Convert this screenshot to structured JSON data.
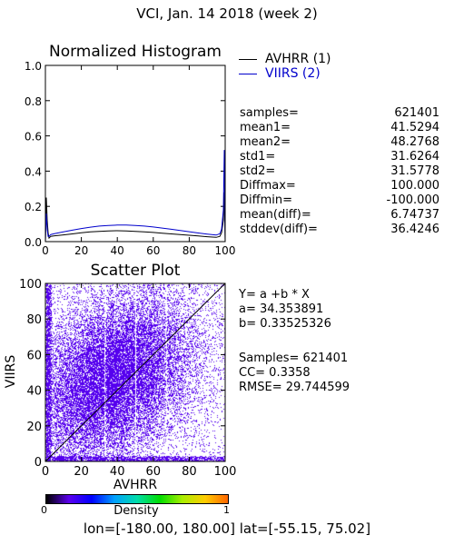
{
  "header": {
    "title": "VCI,  Jan. 14 2018 (week 2)"
  },
  "colors": {
    "avhrr": "#000000",
    "viirs": "#0000cc",
    "scatter": "#5500ee",
    "frame": "#000000"
  },
  "histogram_stats": [
    {
      "label": "samples=",
      "value": "621401"
    },
    {
      "label": "mean1=",
      "value": "41.5294"
    },
    {
      "label": "mean2=",
      "value": "48.2768"
    },
    {
      "label": "std1=",
      "value": "31.6264"
    },
    {
      "label": "std2=",
      "value": "31.5778"
    },
    {
      "label": "Diffmax=",
      "value": "100.000"
    },
    {
      "label": "Diffmin=",
      "value": "-100.000"
    },
    {
      "label": "mean(diff)=",
      "value": "6.74737"
    },
    {
      "label": "stddev(diff)=",
      "value": "36.4246"
    }
  ],
  "regression": {
    "equation": "Y= a +b * X",
    "a_text": "a= 34.353891",
    "b_text": "b= 0.33525326",
    "samples_text": "Samples= 621401",
    "cc_text": "CC=  0.3358",
    "rmse_text": "RMSE= 29.744599"
  },
  "colorbar": {
    "label": "Density",
    "min_label": "0",
    "max_label": "1",
    "colors": [
      "#000000",
      "#5b00ee",
      "#0000ff",
      "#00a0ff",
      "#00ddaa",
      "#00dd00",
      "#aaee00",
      "#ffcc00",
      "#ff6600"
    ]
  },
  "footer": {
    "text": "lon=[-180.00, 180.00] lat=[-55.15, 75.02]"
  },
  "chart_data": [
    {
      "type": "line",
      "title": "Normalized Histogram",
      "xlabel": "",
      "ylabel": "",
      "xlim": [
        0,
        100
      ],
      "ylim": [
        0,
        1
      ],
      "x_ticks": [
        0,
        20,
        40,
        60,
        80,
        100
      ],
      "y_ticks": [
        0.0,
        0.2,
        0.4,
        0.6,
        0.8,
        1.0
      ],
      "y_tick_labels": [
        "0.0",
        "0.2",
        "0.4",
        "0.6",
        "0.8",
        "1.0"
      ],
      "legend": "outside-right",
      "series": [
        {
          "name": "AVHRR (1)",
          "color": "#000000",
          "x": [
            0,
            0.5,
            1,
            1.5,
            2,
            3,
            5,
            10,
            15,
            20,
            25,
            30,
            35,
            40,
            45,
            50,
            55,
            60,
            65,
            70,
            75,
            80,
            85,
            90,
            95,
            97,
            98,
            99,
            99.5,
            100
          ],
          "y": [
            0.0,
            0.25,
            0.12,
            0.05,
            0.02,
            0.03,
            0.033,
            0.038,
            0.044,
            0.05,
            0.055,
            0.058,
            0.061,
            0.062,
            0.061,
            0.058,
            0.055,
            0.052,
            0.048,
            0.044,
            0.04,
            0.036,
            0.032,
            0.028,
            0.024,
            0.03,
            0.05,
            0.12,
            0.28,
            0.0
          ]
        },
        {
          "name": "VIIRS (2)",
          "color": "#0000cc",
          "x": [
            0,
            0.5,
            1,
            1.5,
            2,
            3,
            5,
            10,
            15,
            20,
            25,
            30,
            35,
            40,
            45,
            50,
            55,
            60,
            65,
            70,
            75,
            80,
            85,
            90,
            95,
            97,
            98,
            99,
            99.5,
            100
          ],
          "y": [
            0.0,
            0.16,
            0.07,
            0.03,
            0.03,
            0.04,
            0.045,
            0.055,
            0.065,
            0.074,
            0.082,
            0.088,
            0.092,
            0.094,
            0.094,
            0.092,
            0.088,
            0.083,
            0.077,
            0.07,
            0.063,
            0.056,
            0.049,
            0.043,
            0.037,
            0.045,
            0.07,
            0.18,
            0.52,
            0.0
          ]
        }
      ]
    },
    {
      "type": "scatter",
      "title": "Scatter Plot",
      "xlabel": "AVHRR",
      "ylabel": "VIIRS",
      "xlim": [
        0,
        100
      ],
      "ylim": [
        0,
        100
      ],
      "x_ticks": [
        0,
        20,
        40,
        60,
        80,
        100
      ],
      "y_ticks": [
        0,
        20,
        40,
        60,
        80,
        100
      ],
      "one_to_one_line": true,
      "density_center": {
        "x": 38,
        "y": 48
      },
      "density_spread": {
        "x": 22,
        "y": 24
      },
      "x_gap_values": [
        33,
        50,
        67
      ],
      "regression": {
        "a": 34.353891,
        "b": 0.33525326,
        "samples": 621401,
        "cc": 0.3358,
        "rmse": 29.744599
      }
    }
  ]
}
